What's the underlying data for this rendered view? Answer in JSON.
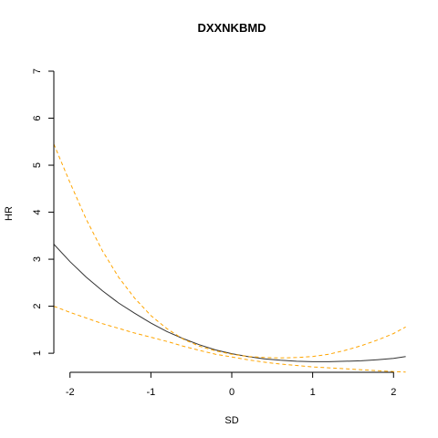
{
  "chart_data": {
    "type": "line",
    "title": "DXXNKBMD",
    "xlabel": "SD",
    "ylabel": "HR",
    "xlim": [
      -2.2,
      2.2
    ],
    "ylim": [
      0.75,
      7.0
    ],
    "xticks": [
      -2,
      -1,
      0,
      1,
      2
    ],
    "yticks": [
      1,
      2,
      3,
      4,
      5,
      6,
      7
    ],
    "grid": false,
    "series": [
      {
        "role": "estimate",
        "style": "solid",
        "color": "#333333",
        "x": [
          -2.2,
          -2.0,
          -1.8,
          -1.6,
          -1.4,
          -1.2,
          -1.0,
          -0.8,
          -0.6,
          -0.4,
          -0.2,
          0.0,
          0.2,
          0.4,
          0.6,
          0.8,
          1.0,
          1.2,
          1.4,
          1.6,
          1.8,
          2.0,
          2.15
        ],
        "y": [
          3.32,
          2.95,
          2.62,
          2.33,
          2.07,
          1.85,
          1.64,
          1.46,
          1.31,
          1.18,
          1.07,
          0.99,
          0.93,
          0.88,
          0.85,
          0.83,
          0.82,
          0.82,
          0.83,
          0.84,
          0.86,
          0.89,
          0.93
        ]
      },
      {
        "role": "upper-ci",
        "style": "dashed",
        "color": "#ffa500",
        "x": [
          -2.2,
          -2.0,
          -1.8,
          -1.6,
          -1.4,
          -1.2,
          -1.0,
          -0.8,
          -0.6,
          -0.4,
          -0.2,
          0.0,
          0.2,
          0.4,
          0.6,
          0.8,
          1.0,
          1.2,
          1.4,
          1.6,
          1.8,
          2.0,
          2.15
        ],
        "y": [
          5.45,
          4.63,
          3.85,
          3.18,
          2.62,
          2.17,
          1.8,
          1.52,
          1.3,
          1.15,
          1.05,
          0.98,
          0.93,
          0.91,
          0.9,
          0.91,
          0.93,
          0.98,
          1.06,
          1.16,
          1.28,
          1.42,
          1.56
        ]
      },
      {
        "role": "lower-ci",
        "style": "dashed",
        "color": "#ffa500",
        "x": [
          -2.2,
          -2.0,
          -1.8,
          -1.6,
          -1.4,
          -1.2,
          -1.0,
          -0.8,
          -0.6,
          -0.4,
          -0.2,
          0.0,
          0.2,
          0.4,
          0.6,
          0.8,
          1.0,
          1.2,
          1.4,
          1.6,
          1.8,
          2.0,
          2.15
        ],
        "y": [
          2.0,
          1.87,
          1.75,
          1.63,
          1.53,
          1.43,
          1.34,
          1.25,
          1.15,
          1.06,
          0.98,
          0.92,
          0.86,
          0.81,
          0.77,
          0.74,
          0.71,
          0.69,
          0.67,
          0.65,
          0.63,
          0.61,
          0.6
        ]
      }
    ]
  }
}
